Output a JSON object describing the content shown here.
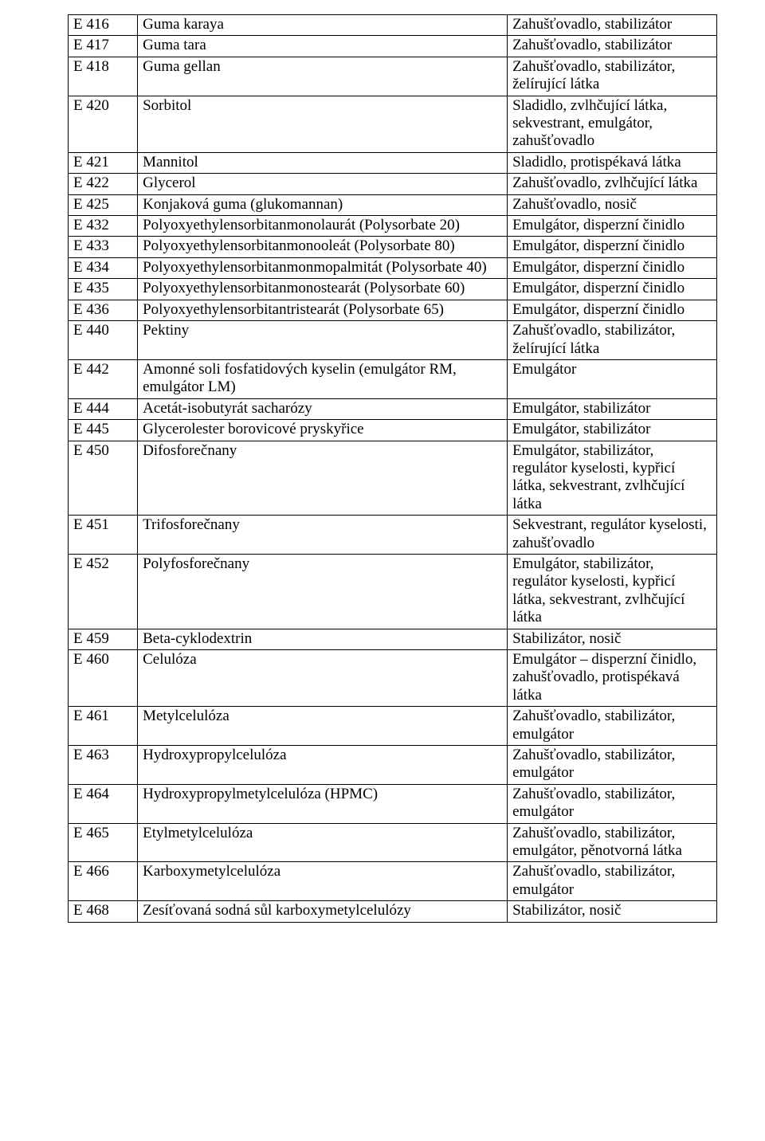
{
  "table": {
    "columns": [
      "code",
      "name",
      "function"
    ],
    "col_widths_pct": [
      10.7,
      57.0,
      32.3
    ],
    "border_color": "#000000",
    "font_family": "Times New Roman",
    "font_size_pt": 14,
    "rows": [
      {
        "code": "E 416",
        "name": "Guma karaya",
        "function": "Zahušťovadlo, stabilizátor"
      },
      {
        "code": "E 417",
        "name": "Guma tara",
        "function": "Zahušťovadlo, stabilizátor"
      },
      {
        "code": "E 418",
        "name": "Guma gellan",
        "function": "Zahušťovadlo, stabilizátor, želírující látka"
      },
      {
        "code": "E 420",
        "name": "Sorbitol",
        "function": "Sladidlo, zvlhčující látka, sekvestrant, emulgátor, zahušťovadlo"
      },
      {
        "code": "E 421",
        "name": "Mannitol",
        "function": "Sladidlo, protispékavá látka"
      },
      {
        "code": "E 422",
        "name": "Glycerol",
        "function": "Zahušťovadlo, zvlhčující látka"
      },
      {
        "code": "E 425",
        "name": "Konjaková guma (glukomannan)",
        "function": "Zahušťovadlo, nosič"
      },
      {
        "code": "E 432",
        "name": "Polyoxyethylensorbitanmonolaurát (Polysorbate 20)",
        "function": "Emulgátor, disperzní činidlo"
      },
      {
        "code": "E 433",
        "name": "Polyoxyethylensorbitanmonooleát (Polysorbate 80)",
        "function": "Emulgátor, disperzní činidlo"
      },
      {
        "code": "E 434",
        "name": "Polyoxyethylensorbitanmonmopalmitát (Polysorbate 40)",
        "function": "Emulgátor, disperzní činidlo"
      },
      {
        "code": "E 435",
        "name": "Polyoxyethylensorbitanmonostearát (Polysorbate 60)",
        "function": "Emulgátor, disperzní činidlo"
      },
      {
        "code": "E 436",
        "name": "Polyoxyethylensorbitantristearát (Polysorbate 65)",
        "function": "Emulgátor, disperzní činidlo"
      },
      {
        "code": "E 440",
        "name": "Pektiny",
        "function": "Zahušťovadlo, stabilizátor, želírující látka"
      },
      {
        "code": "E 442",
        "name": "Amonné soli fosfatidových kyselin (emulgátor RM, emulgátor LM)",
        "function": "Emulgátor"
      },
      {
        "code": "E 444",
        "name": "Acetát-isobutyrát sacharózy",
        "function": "Emulgátor, stabilizátor"
      },
      {
        "code": "E 445",
        "name": "Glycerolester borovicové pryskyřice",
        "function": "Emulgátor, stabilizátor"
      },
      {
        "code": "E 450",
        "name": "Difosforečnany",
        "function": "Emulgátor, stabilizátor, regulátor kyselosti, kypřicí látka, sekvestrant, zvlhčující látka"
      },
      {
        "code": "E 451",
        "name": "Trifosforečnany",
        "function": "Sekvestrant, regulátor kyselosti, zahušťovadlo"
      },
      {
        "code": "E 452",
        "name": "Polyfosforečnany",
        "function": "Emulgátor, stabilizátor, regulátor kyselosti, kypřicí látka, sekvestrant, zvlhčující látka"
      },
      {
        "code": "E 459",
        "name": "Beta-cyklodextrin",
        "function": "Stabilizátor, nosič"
      },
      {
        "code": "E 460",
        "name": "Celulóza",
        "function": "Emulgátor – disperzní činidlo, zahušťovadlo, protispékavá látka"
      },
      {
        "code": "E 461",
        "name": "Metylcelulóza",
        "function": "Zahušťovadlo, stabilizátor, emulgátor"
      },
      {
        "code": "E 463",
        "name": "Hydroxypropylcelulóza",
        "function": "Zahušťovadlo, stabilizátor, emulgátor"
      },
      {
        "code": "E 464",
        "name": "Hydroxypropylmetylcelulóza (HPMC)",
        "function": "Zahušťovadlo, stabilizátor, emulgátor"
      },
      {
        "code": "E 465",
        "name": "Etylmetylcelulóza",
        "function": "Zahušťovadlo, stabilizátor, emulgátor, pěnotvorná látka"
      },
      {
        "code": "E 466",
        "name": "Karboxymetylcelulóza",
        "function": "Zahušťovadlo, stabilizátor, emulgátor"
      },
      {
        "code": "E 468",
        "name": "Zesíťovaná sodná sůl karboxymetylcelulózy",
        "function": "Stabilizátor, nosič"
      }
    ]
  }
}
